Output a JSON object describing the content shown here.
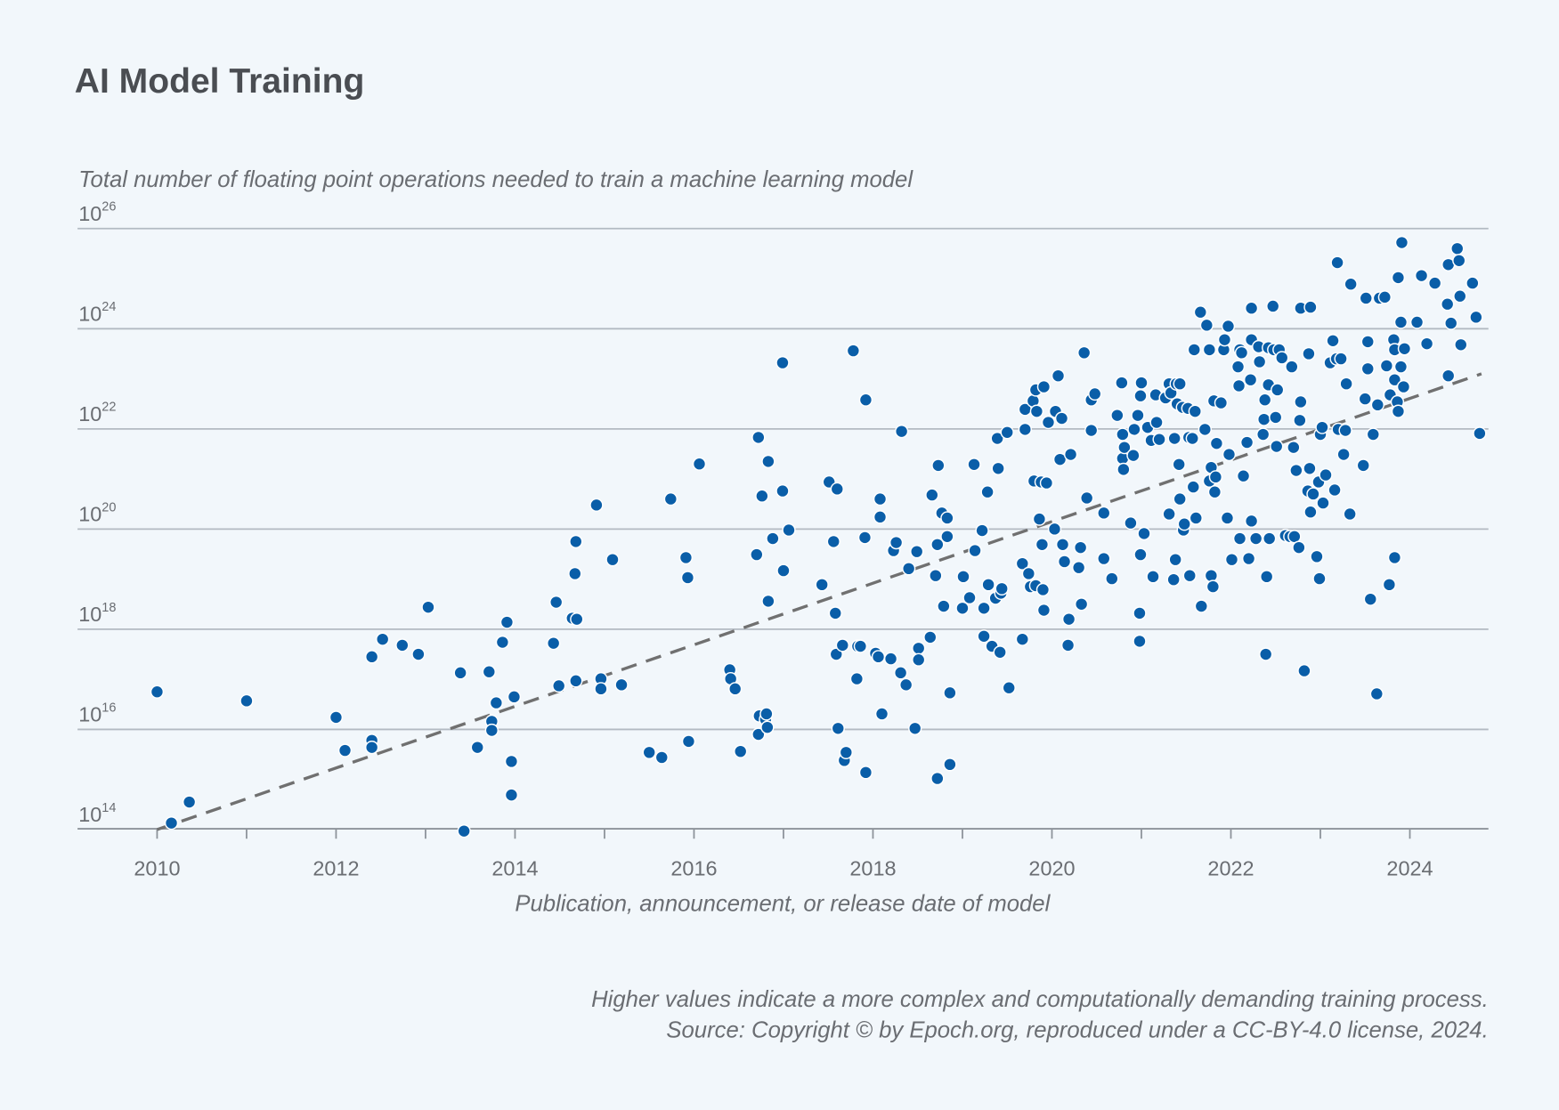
{
  "title": "AI Model Training",
  "footnote": {
    "line1": "Higher values indicate a more complex and computationally demanding training process.",
    "line2": "Source: Copyright © by Epoch.org, reproduced under a CC-BY-4.0 license, 2024."
  },
  "colors": {
    "background": "#f2f7fb",
    "points": "#0a5ea8",
    "trend": "#707070",
    "grid": "#b3bac2"
  },
  "chart_data": {
    "type": "scatter",
    "title": "AI Model Training",
    "ylabel": "Total number of floating point operations needed to train a machine learning model",
    "xlabel": "Publication, announcement, or release date of model",
    "y_scale": "log10",
    "y_tick_base": "10",
    "y_tick_exponents": [
      "26",
      "24",
      "22",
      "20",
      "18",
      "16",
      "14"
    ],
    "x_ticks": [
      "2010",
      "2012",
      "2014",
      "2016",
      "2018",
      "2020",
      "2022",
      "2024"
    ],
    "xlim": [
      2009.1,
      2024.85
    ],
    "ylim_exponent": [
      14,
      26
    ],
    "grid": "horizontal",
    "trend_line": {
      "style": "dashed",
      "points": [
        [
          2010.0,
          14.0
        ],
        [
          2024.8,
          23.1
        ]
      ]
    },
    "points_note": "each point is [year, log10(FLOP)]",
    "points": [
      [
        2010.0,
        16.75
      ],
      [
        2010.16,
        14.13
      ],
      [
        2010.36,
        14.55
      ],
      [
        2011.0,
        16.57
      ],
      [
        2012.0,
        16.24
      ],
      [
        2012.1,
        15.58
      ],
      [
        2012.4,
        17.45
      ],
      [
        2012.4,
        15.78
      ],
      [
        2012.4,
        15.64
      ],
      [
        2012.52,
        17.8
      ],
      [
        2012.74,
        17.68
      ],
      [
        2012.92,
        17.5
      ],
      [
        2013.03,
        18.44
      ],
      [
        2013.39,
        17.13
      ],
      [
        2013.43,
        13.97
      ],
      [
        2013.58,
        15.64
      ],
      [
        2013.71,
        17.15
      ],
      [
        2013.74,
        16.16
      ],
      [
        2013.74,
        15.98
      ],
      [
        2013.79,
        16.53
      ],
      [
        2013.86,
        17.74
      ],
      [
        2013.91,
        18.14
      ],
      [
        2013.96,
        15.36
      ],
      [
        2013.96,
        14.69
      ],
      [
        2013.99,
        16.65
      ],
      [
        2014.43,
        17.72
      ],
      [
        2014.46,
        18.54
      ],
      [
        2014.49,
        16.87
      ],
      [
        2014.64,
        18.22
      ],
      [
        2014.69,
        18.2
      ],
      [
        2014.67,
        19.11
      ],
      [
        2014.68,
        19.75
      ],
      [
        2014.68,
        16.97
      ],
      [
        2014.91,
        20.48
      ],
      [
        2014.96,
        17.01
      ],
      [
        2014.96,
        16.81
      ],
      [
        2015.09,
        19.39
      ],
      [
        2015.19,
        16.89
      ],
      [
        2015.5,
        15.54
      ],
      [
        2015.64,
        15.44
      ],
      [
        2015.74,
        20.6
      ],
      [
        2015.91,
        19.43
      ],
      [
        2015.93,
        19.03
      ],
      [
        2015.94,
        15.76
      ],
      [
        2016.06,
        21.3
      ],
      [
        2016.4,
        17.19
      ],
      [
        2016.41,
        17.01
      ],
      [
        2016.46,
        16.81
      ],
      [
        2016.52,
        15.56
      ],
      [
        2016.7,
        19.49
      ],
      [
        2016.72,
        15.9
      ],
      [
        2016.73,
        16.27
      ],
      [
        2016.72,
        21.83
      ],
      [
        2016.76,
        20.66
      ],
      [
        2016.8,
        16.2
      ],
      [
        2016.81,
        16.31
      ],
      [
        2016.82,
        16.04
      ],
      [
        2016.83,
        21.35
      ],
      [
        2016.83,
        18.56
      ],
      [
        2016.88,
        19.81
      ],
      [
        2016.99,
        23.32
      ],
      [
        2016.99,
        20.76
      ],
      [
        2017.0,
        19.17
      ],
      [
        2017.06,
        19.98
      ],
      [
        2017.43,
        18.89
      ],
      [
        2017.51,
        20.94
      ],
      [
        2017.56,
        19.75
      ],
      [
        2017.58,
        18.32
      ],
      [
        2017.59,
        17.5
      ],
      [
        2017.6,
        20.8
      ],
      [
        2017.61,
        16.02
      ],
      [
        2017.66,
        17.68
      ],
      [
        2017.68,
        15.38
      ],
      [
        2017.7,
        15.54
      ],
      [
        2017.78,
        23.56
      ],
      [
        2017.83,
        17.66
      ],
      [
        2017.82,
        17.01
      ],
      [
        2017.86,
        17.66
      ],
      [
        2017.91,
        19.83
      ],
      [
        2017.92,
        22.58
      ],
      [
        2017.92,
        15.14
      ],
      [
        2018.03,
        17.52
      ],
      [
        2018.06,
        17.45
      ],
      [
        2018.08,
        20.6
      ],
      [
        2018.08,
        20.24
      ],
      [
        2018.1,
        16.31
      ],
      [
        2018.2,
        17.41
      ],
      [
        2018.23,
        19.57
      ],
      [
        2018.26,
        19.73
      ],
      [
        2018.31,
        17.13
      ],
      [
        2018.32,
        21.95
      ],
      [
        2018.37,
        16.89
      ],
      [
        2018.4,
        19.21
      ],
      [
        2018.47,
        16.02
      ],
      [
        2018.49,
        19.55
      ],
      [
        2018.51,
        17.62
      ],
      [
        2018.51,
        17.39
      ],
      [
        2018.64,
        17.84
      ],
      [
        2018.66,
        20.68
      ],
      [
        2018.7,
        19.07
      ],
      [
        2018.72,
        19.69
      ],
      [
        2018.72,
        15.02
      ],
      [
        2018.73,
        21.27
      ],
      [
        2018.77,
        20.32
      ],
      [
        2018.79,
        18.46
      ],
      [
        2018.83,
        19.85
      ],
      [
        2018.83,
        20.22
      ],
      [
        2018.86,
        16.73
      ],
      [
        2018.86,
        15.3
      ],
      [
        2019.0,
        18.42
      ],
      [
        2019.01,
        19.05
      ],
      [
        2019.08,
        18.63
      ],
      [
        2019.13,
        21.29
      ],
      [
        2019.14,
        19.57
      ],
      [
        2019.22,
        19.97
      ],
      [
        2019.24,
        18.42
      ],
      [
        2019.24,
        17.86
      ],
      [
        2019.28,
        20.74
      ],
      [
        2019.29,
        18.89
      ],
      [
        2019.33,
        17.66
      ],
      [
        2019.37,
        18.62
      ],
      [
        2019.39,
        21.81
      ],
      [
        2019.4,
        21.21
      ],
      [
        2019.42,
        17.54
      ],
      [
        2019.43,
        18.72
      ],
      [
        2019.44,
        18.81
      ],
      [
        2019.5,
        21.93
      ],
      [
        2019.52,
        16.83
      ],
      [
        2019.67,
        19.31
      ],
      [
        2019.67,
        17.8
      ],
      [
        2019.7,
        22.39
      ],
      [
        2019.7,
        21.99
      ],
      [
        2019.74,
        19.11
      ],
      [
        2019.76,
        18.85
      ],
      [
        2019.79,
        22.56
      ],
      [
        2019.8,
        20.96
      ],
      [
        2019.82,
        22.78
      ],
      [
        2019.82,
        18.87
      ],
      [
        2019.83,
        22.35
      ],
      [
        2019.86,
        20.2
      ],
      [
        2019.88,
        20.94
      ],
      [
        2019.89,
        19.69
      ],
      [
        2019.9,
        18.79
      ],
      [
        2019.91,
        18.38
      ],
      [
        2019.91,
        22.84
      ],
      [
        2019.94,
        20.92
      ],
      [
        2019.96,
        22.13
      ],
      [
        2020.03,
        20.0
      ],
      [
        2020.04,
        22.35
      ],
      [
        2020.07,
        23.06
      ],
      [
        2020.09,
        21.39
      ],
      [
        2020.11,
        22.21
      ],
      [
        2020.12,
        19.69
      ],
      [
        2020.14,
        19.35
      ],
      [
        2020.18,
        17.68
      ],
      [
        2020.19,
        18.2
      ],
      [
        2020.21,
        21.49
      ],
      [
        2020.3,
        19.23
      ],
      [
        2020.32,
        19.63
      ],
      [
        2020.33,
        18.5
      ],
      [
        2020.36,
        23.52
      ],
      [
        2020.39,
        20.62
      ],
      [
        2020.44,
        22.58
      ],
      [
        2020.44,
        21.97
      ],
      [
        2020.48,
        22.7
      ],
      [
        2020.58,
        20.32
      ],
      [
        2020.58,
        19.41
      ],
      [
        2020.67,
        19.01
      ],
      [
        2020.73,
        22.27
      ],
      [
        2020.78,
        22.92
      ],
      [
        2020.79,
        21.89
      ],
      [
        2020.79,
        21.41
      ],
      [
        2020.8,
        21.19
      ],
      [
        2020.81,
        21.63
      ],
      [
        2020.88,
        20.12
      ],
      [
        2020.91,
        21.47
      ],
      [
        2020.92,
        21.99
      ],
      [
        2020.96,
        22.27
      ],
      [
        2020.98,
        18.32
      ],
      [
        2020.98,
        17.76
      ],
      [
        2020.99,
        19.49
      ],
      [
        2020.99,
        22.66
      ],
      [
        2021.0,
        22.92
      ],
      [
        2021.03,
        19.91
      ],
      [
        2021.07,
        22.03
      ],
      [
        2021.11,
        21.77
      ],
      [
        2021.13,
        19.05
      ],
      [
        2021.16,
        22.68
      ],
      [
        2021.17,
        22.13
      ],
      [
        2021.2,
        21.79
      ],
      [
        2021.27,
        22.62
      ],
      [
        2021.31,
        22.9
      ],
      [
        2021.31,
        20.3
      ],
      [
        2021.33,
        22.72
      ],
      [
        2021.36,
        18.99
      ],
      [
        2021.37,
        21.81
      ],
      [
        2021.38,
        19.39
      ],
      [
        2021.39,
        22.9
      ],
      [
        2021.4,
        22.5
      ],
      [
        2021.42,
        21.29
      ],
      [
        2021.43,
        22.9
      ],
      [
        2021.43,
        20.6
      ],
      [
        2021.46,
        22.43
      ],
      [
        2021.47,
        19.98
      ],
      [
        2021.48,
        20.1
      ],
      [
        2021.52,
        22.41
      ],
      [
        2021.53,
        21.83
      ],
      [
        2021.54,
        19.07
      ],
      [
        2021.57,
        21.81
      ],
      [
        2021.58,
        20.84
      ],
      [
        2021.59,
        23.58
      ],
      [
        2021.6,
        22.35
      ],
      [
        2021.61,
        20.22
      ],
      [
        2021.66,
        24.33
      ],
      [
        2021.67,
        18.46
      ],
      [
        2021.71,
        21.99
      ],
      [
        2021.73,
        24.07
      ],
      [
        2021.76,
        23.58
      ],
      [
        2021.76,
        20.96
      ],
      [
        2021.78,
        21.23
      ],
      [
        2021.78,
        19.07
      ],
      [
        2021.8,
        18.85
      ],
      [
        2021.81,
        22.56
      ],
      [
        2021.82,
        20.74
      ],
      [
        2021.83,
        21.04
      ],
      [
        2021.84,
        21.71
      ],
      [
        2021.89,
        22.52
      ],
      [
        2021.91,
        23.58
      ],
      [
        2021.92,
        23.58
      ],
      [
        2021.93,
        23.78
      ],
      [
        2021.96,
        20.22
      ],
      [
        2021.97,
        24.05
      ],
      [
        2021.98,
        21.49
      ],
      [
        2022.01,
        19.39
      ],
      [
        2022.08,
        23.24
      ],
      [
        2022.09,
        22.86
      ],
      [
        2022.1,
        23.58
      ],
      [
        2022.1,
        19.81
      ],
      [
        2022.12,
        23.52
      ],
      [
        2022.14,
        21.06
      ],
      [
        2022.18,
        21.73
      ],
      [
        2022.2,
        19.41
      ],
      [
        2022.22,
        22.98
      ],
      [
        2022.23,
        23.78
      ],
      [
        2022.23,
        24.41
      ],
      [
        2022.23,
        20.16
      ],
      [
        2022.28,
        19.81
      ],
      [
        2022.31,
        23.64
      ],
      [
        2022.32,
        23.34
      ],
      [
        2022.36,
        21.89
      ],
      [
        2022.37,
        22.19
      ],
      [
        2022.38,
        22.58
      ],
      [
        2022.39,
        17.5
      ],
      [
        2022.4,
        19.05
      ],
      [
        2022.42,
        23.62
      ],
      [
        2022.42,
        22.88
      ],
      [
        2022.43,
        19.81
      ],
      [
        2022.47,
        24.45
      ],
      [
        2022.48,
        23.58
      ],
      [
        2022.5,
        22.23
      ],
      [
        2022.51,
        21.65
      ],
      [
        2022.52,
        22.78
      ],
      [
        2022.54,
        23.58
      ],
      [
        2022.57,
        23.42
      ],
      [
        2022.61,
        19.87
      ],
      [
        2022.66,
        19.85
      ],
      [
        2022.68,
        23.24
      ],
      [
        2022.7,
        21.63
      ],
      [
        2022.71,
        19.85
      ],
      [
        2022.73,
        21.17
      ],
      [
        2022.76,
        19.63
      ],
      [
        2022.77,
        22.17
      ],
      [
        2022.78,
        24.41
      ],
      [
        2022.78,
        22.54
      ],
      [
        2022.82,
        17.17
      ],
      [
        2022.86,
        20.76
      ],
      [
        2022.87,
        23.5
      ],
      [
        2022.88,
        21.21
      ],
      [
        2022.89,
        24.43
      ],
      [
        2022.89,
        20.34
      ],
      [
        2022.92,
        20.7
      ],
      [
        2022.96,
        19.45
      ],
      [
        2022.98,
        20.94
      ],
      [
        2022.99,
        19.01
      ],
      [
        2023.0,
        21.89
      ],
      [
        2023.02,
        22.03
      ],
      [
        2023.03,
        20.52
      ],
      [
        2023.06,
        21.08
      ],
      [
        2023.11,
        23.32
      ],
      [
        2023.14,
        23.76
      ],
      [
        2023.16,
        20.78
      ],
      [
        2023.18,
        23.4
      ],
      [
        2023.19,
        25.32
      ],
      [
        2023.2,
        21.99
      ],
      [
        2023.23,
        23.4
      ],
      [
        2023.26,
        21.49
      ],
      [
        2023.28,
        21.97
      ],
      [
        2023.29,
        22.9
      ],
      [
        2023.33,
        20.3
      ],
      [
        2023.34,
        24.89
      ],
      [
        2023.48,
        21.27
      ],
      [
        2023.5,
        22.6
      ],
      [
        2023.51,
        24.61
      ],
      [
        2023.53,
        23.74
      ],
      [
        2023.53,
        23.2
      ],
      [
        2023.56,
        18.6
      ],
      [
        2023.59,
        21.89
      ],
      [
        2023.63,
        16.71
      ],
      [
        2023.64,
        22.48
      ],
      [
        2023.66,
        24.61
      ],
      [
        2023.72,
        24.63
      ],
      [
        2023.74,
        23.26
      ],
      [
        2023.77,
        18.89
      ],
      [
        2023.78,
        22.68
      ],
      [
        2023.82,
        23.78
      ],
      [
        2023.83,
        19.43
      ],
      [
        2023.83,
        22.98
      ],
      [
        2023.83,
        23.58
      ],
      [
        2023.86,
        22.54
      ],
      [
        2023.87,
        22.35
      ],
      [
        2023.87,
        25.02
      ],
      [
        2023.9,
        23.24
      ],
      [
        2023.9,
        24.13
      ],
      [
        2023.93,
        22.84
      ],
      [
        2023.94,
        23.6
      ],
      [
        2023.91,
        25.72
      ],
      [
        2024.08,
        24.13
      ],
      [
        2024.13,
        25.06
      ],
      [
        2024.19,
        23.7
      ],
      [
        2024.28,
        24.91
      ],
      [
        2024.42,
        24.49
      ],
      [
        2024.43,
        23.06
      ],
      [
        2024.43,
        25.28
      ],
      [
        2024.46,
        24.11
      ],
      [
        2024.53,
        25.6
      ],
      [
        2024.55,
        25.36
      ],
      [
        2024.56,
        24.65
      ],
      [
        2024.57,
        23.68
      ],
      [
        2024.7,
        24.91
      ],
      [
        2024.74,
        24.23
      ],
      [
        2024.78,
        21.91
      ]
    ]
  }
}
